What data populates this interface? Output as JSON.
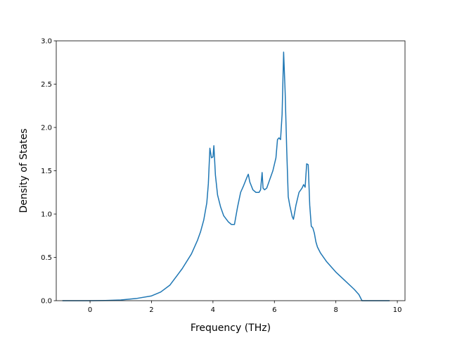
{
  "chart_data": {
    "type": "line",
    "title": "",
    "xlabel": "Frequency (THz)",
    "ylabel": "Density of States",
    "xlim": [
      -1.1,
      10.25
    ],
    "ylim": [
      0,
      3.0
    ],
    "x_ticks": [
      0,
      2,
      4,
      6,
      8,
      10
    ],
    "y_ticks": [
      0.0,
      0.5,
      1.0,
      1.5,
      2.0,
      2.5,
      3.0
    ],
    "x_tick_labels": [
      "0",
      "2",
      "4",
      "6",
      "8",
      "10"
    ],
    "y_tick_labels": [
      "0.0",
      "0.5",
      "1.0",
      "1.5",
      "2.0",
      "2.5",
      "3.0"
    ],
    "grid": false,
    "line_color": "#1f77b4",
    "series": [
      {
        "x": [
          -0.9,
          0.0,
          0.5,
          1.0,
          1.5,
          2.0,
          2.3,
          2.6,
          3.0,
          3.3,
          3.5,
          3.6,
          3.7,
          3.8,
          3.85,
          3.9,
          3.95,
          4.0,
          4.03,
          4.08,
          4.15,
          4.25,
          4.35,
          4.5,
          4.6,
          4.7,
          4.8,
          4.9,
          5.0,
          5.1,
          5.15,
          5.2,
          5.3,
          5.4,
          5.5,
          5.55,
          5.6,
          5.63,
          5.68,
          5.75,
          5.85,
          5.95,
          6.05,
          6.1,
          6.15,
          6.2,
          6.25,
          6.3,
          6.35,
          6.4,
          6.45,
          6.5,
          6.58,
          6.62,
          6.7,
          6.8,
          6.9,
          6.95,
          7.0,
          7.05,
          7.1,
          7.15,
          7.2,
          7.25,
          7.3,
          7.35,
          7.4,
          7.5,
          7.7,
          8.0,
          8.3,
          8.6,
          8.75,
          8.85,
          8.9,
          9.2,
          9.75
        ],
        "y": [
          0.0,
          0.0,
          0.002,
          0.008,
          0.025,
          0.055,
          0.1,
          0.18,
          0.37,
          0.54,
          0.7,
          0.8,
          0.93,
          1.13,
          1.35,
          1.76,
          1.65,
          1.66,
          1.79,
          1.45,
          1.22,
          1.08,
          0.98,
          0.91,
          0.88,
          0.88,
          1.08,
          1.25,
          1.33,
          1.42,
          1.46,
          1.37,
          1.28,
          1.25,
          1.25,
          1.28,
          1.48,
          1.3,
          1.28,
          1.3,
          1.4,
          1.5,
          1.65,
          1.86,
          1.88,
          1.86,
          2.15,
          2.87,
          2.4,
          1.75,
          1.2,
          1.1,
          0.97,
          0.94,
          1.1,
          1.25,
          1.3,
          1.34,
          1.31,
          1.58,
          1.57,
          1.1,
          0.86,
          0.84,
          0.78,
          0.68,
          0.62,
          0.55,
          0.45,
          0.33,
          0.23,
          0.13,
          0.07,
          0.0,
          0.0,
          0.0,
          0.0
        ]
      }
    ]
  }
}
